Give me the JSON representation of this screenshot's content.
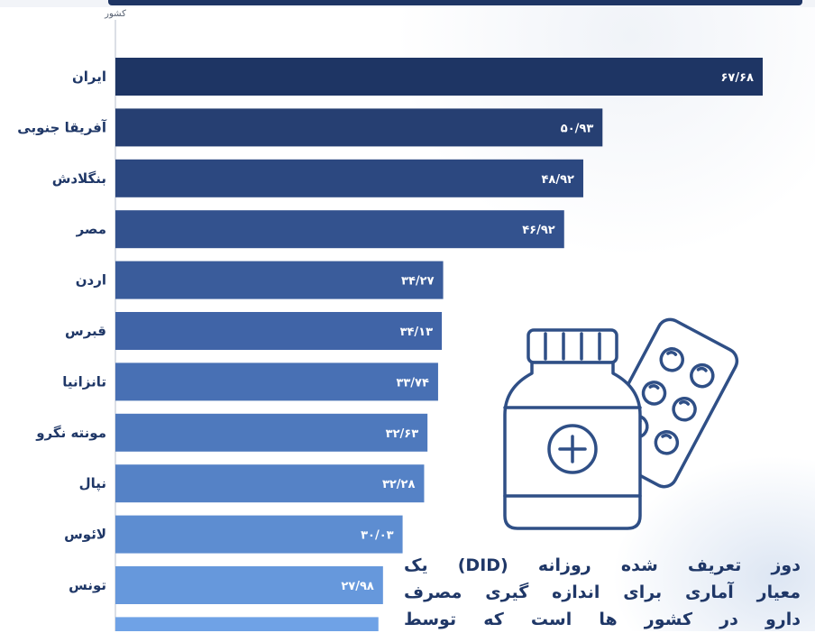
{
  "chart_data": {
    "type": "bar",
    "orientation": "horizontal",
    "ylabel": "کشور",
    "categories": [
      "ایران",
      "آفریقا جنوبی",
      "بنگلادش",
      "مصر",
      "اردن",
      "قبرس",
      "تانزانیا",
      "مونته نگرو",
      "نپال",
      "لائوس",
      "تونس",
      ""
    ],
    "values": [
      67.68,
      50.93,
      48.92,
      46.92,
      34.27,
      34.13,
      33.74,
      32.63,
      32.28,
      30.03,
      27.98,
      27.5
    ],
    "value_labels": [
      "۶۷/۶۸",
      "۵۰/۹۳",
      "۴۸/۹۲",
      "۴۶/۹۲",
      "۳۴/۲۷",
      "۳۴/۱۳",
      "۳۳/۷۴",
      "۳۲/۶۳",
      "۳۲/۲۸",
      "۳۰/۰۳",
      "۲۷/۹۸",
      ""
    ],
    "colors": [
      "#1e3564",
      "#263f72",
      "#2c4880",
      "#33528e",
      "#3a5c9b",
      "#4064a7",
      "#4870b4",
      "#4e79bd",
      "#5582c6",
      "#5d8dd1",
      "#6698dc",
      "#6fa2e6"
    ],
    "xlim": [
      0,
      72
    ],
    "grid": false,
    "legend": "none"
  },
  "info_text": {
    "lines": [
      "دوز تعریف شده روزانه (DID) یک",
      "معیار آماری برای اندازه گیری مصرف",
      "دارو در کشور ها است که توسط"
    ]
  },
  "icons": {
    "illustration": "medicine-bottle-and-pill-blister-icon"
  }
}
